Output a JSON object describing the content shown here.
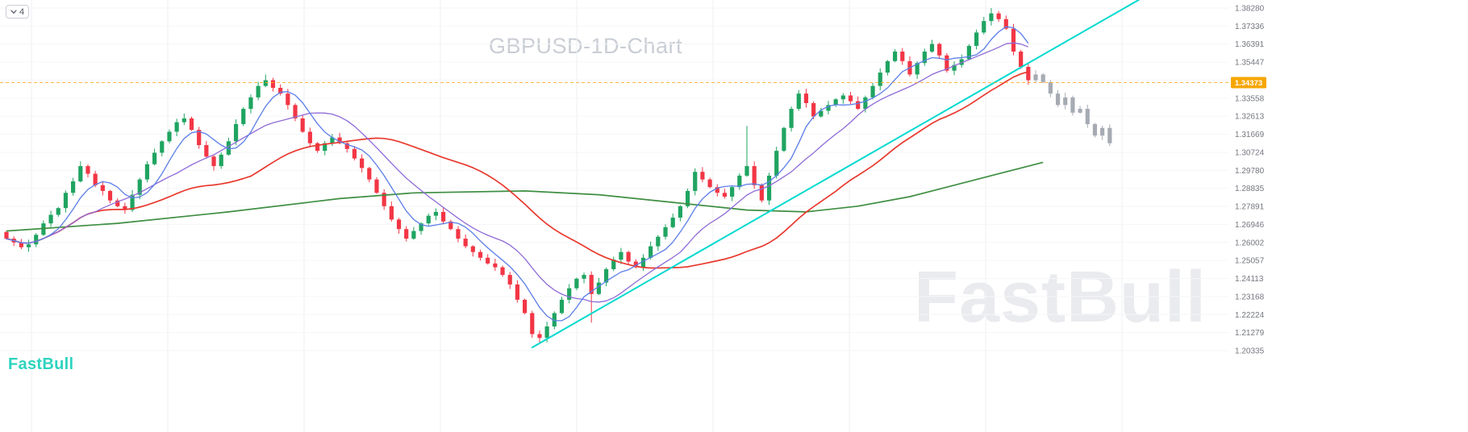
{
  "header": {
    "indicator_count": "4"
  },
  "watermarks": {
    "brand_large": "FastBull",
    "brand_logo": "FastBull"
  },
  "colors": {
    "up": "#1fa461",
    "down": "#f23645",
    "neutral": "#a6abb3",
    "ma_fast": "#5b7de8",
    "ma_mid": "#8e6bd6",
    "ma_slow": "#e8392e",
    "ma_long": "#3e8e41",
    "trendline": "#00d9cf",
    "price_line": "#ffa726",
    "price_tag_bg": "#f7a600",
    "price_tag_text": "#ffffff",
    "axis_text": "#74777f",
    "grid_v": "#eceff3",
    "grid_h": "#f5f6f8"
  },
  "axis": {
    "top_value": 1.3828,
    "bottom_value": 1.20335,
    "labels": [
      "1.38280",
      "1.37336",
      "1.36391",
      "1.35447",
      null,
      "1.33558",
      "1.32613",
      "1.31669",
      "1.30724",
      "1.29780",
      "1.28835",
      "1.27891",
      "1.26946",
      "1.26002",
      "1.25057",
      "1.24113",
      "1.23168",
      "1.22224",
      "1.21279",
      "1.20335"
    ],
    "price_tag": "1.34373",
    "price_tag_value": 1.34373
  },
  "chart_data": {
    "type": "candlestick",
    "title": "GBPUSD-1D-Chart",
    "symbol": "GBPUSD",
    "timeframe": "1D",
    "ylim": [
      1.20335,
      1.3828
    ],
    "grid": true,
    "last_price": 1.34373,
    "open_first": 1.2655,
    "closes": [
      1.262,
      1.26,
      1.2575,
      1.259,
      1.264,
      1.27,
      1.2745,
      1.278,
      1.286,
      1.292,
      1.3,
      1.296,
      1.29,
      1.287,
      1.282,
      1.279,
      1.277,
      1.285,
      1.293,
      1.301,
      1.307,
      1.313,
      1.318,
      1.323,
      1.325,
      1.319,
      1.311,
      1.305,
      1.3,
      1.306,
      1.313,
      1.322,
      1.33,
      1.336,
      1.342,
      1.345,
      1.341,
      1.338,
      1.332,
      1.325,
      1.318,
      1.312,
      1.308,
      1.312,
      1.315,
      1.312,
      1.309,
      1.304,
      1.299,
      1.293,
      1.286,
      1.279,
      1.272,
      1.267,
      1.262,
      1.266,
      1.27,
      1.274,
      1.276,
      1.271,
      1.267,
      1.262,
      1.258,
      1.255,
      1.252,
      1.249,
      1.247,
      1.243,
      1.238,
      1.23,
      1.223,
      1.212,
      1.21,
      1.216,
      1.223,
      1.23,
      1.236,
      1.241,
      1.243,
      1.233,
      1.239,
      1.246,
      1.251,
      1.255,
      1.25,
      1.247,
      1.252,
      1.258,
      1.263,
      1.268,
      1.273,
      1.279,
      1.287,
      1.297,
      1.293,
      1.289,
      1.286,
      1.284,
      1.289,
      1.295,
      1.3,
      1.29,
      1.282,
      1.295,
      1.308,
      1.32,
      1.33,
      1.338,
      1.333,
      1.326,
      1.329,
      1.332,
      1.335,
      1.337,
      1.334,
      1.33,
      1.336,
      1.342,
      1.349,
      1.355,
      1.36,
      1.355,
      1.348,
      1.354,
      1.36,
      1.364,
      1.358,
      1.35,
      1.353,
      1.356,
      1.363,
      1.37,
      1.376,
      1.38,
      1.377,
      1.372,
      1.36,
      1.352,
      1.345,
      1.348,
      1.344,
      1.338,
      1.332,
      1.336,
      1.328,
      1.33,
      1.322,
      1.316,
      1.32,
      1.312
    ],
    "gray_start_index": 139,
    "wick_overrides": {
      "35": {
        "high": 1.348
      },
      "72": {
        "low": 1.207
      },
      "79": {
        "low": 1.218
      },
      "100": {
        "high": 1.321
      },
      "133": {
        "high": 1.3828
      }
    },
    "moving_averages": [
      {
        "name": "ma-fast-blue",
        "period": 6,
        "color_key": "ma_fast",
        "width": 1.3
      },
      {
        "name": "ma-mid-purple",
        "period": 13,
        "color_key": "ma_mid",
        "width": 1.3
      },
      {
        "name": "ma-slow-red",
        "period": 34,
        "color_key": "ma_slow",
        "width": 1.7
      }
    ],
    "long_ma_points": [
      [
        0,
        1.266
      ],
      [
        15,
        1.27
      ],
      [
        30,
        1.276
      ],
      [
        45,
        1.283
      ],
      [
        55,
        1.286
      ],
      [
        70,
        1.287
      ],
      [
        80,
        1.285
      ],
      [
        90,
        1.281
      ],
      [
        100,
        1.277
      ],
      [
        108,
        1.276
      ],
      [
        115,
        1.279
      ],
      [
        122,
        1.284
      ],
      [
        128,
        1.29
      ],
      [
        134,
        1.296
      ],
      [
        140,
        1.302
      ]
    ],
    "trendline": {
      "from": [
        71,
        1.205
      ],
      "to": [
        154,
        1.3895
      ]
    }
  }
}
